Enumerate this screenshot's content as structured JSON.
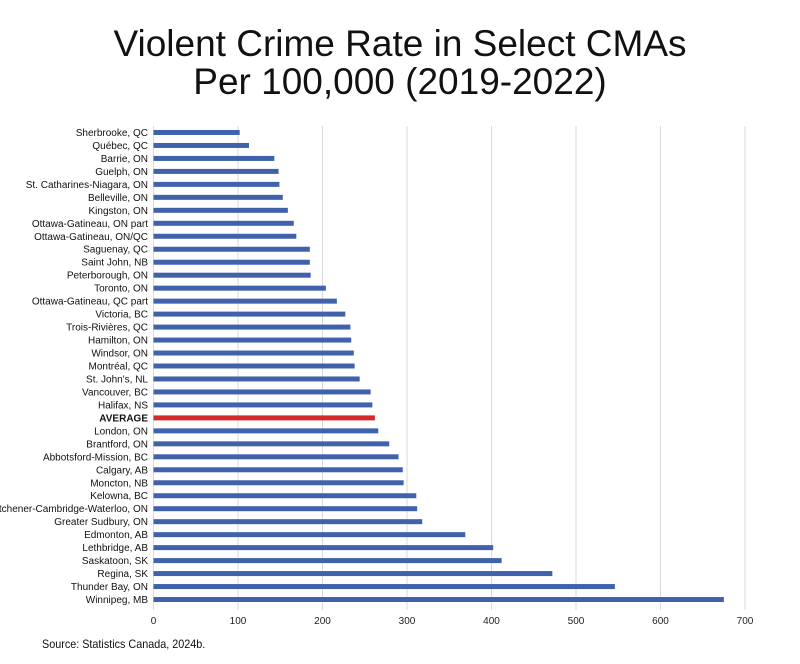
{
  "chart_data": {
    "type": "bar",
    "orientation": "horizontal",
    "title": [
      "Violent Crime Rate in Select CMAs",
      "Per 100,000 (2019-2022)"
    ],
    "xlabel": "",
    "ylabel": "",
    "xlim": [
      0,
      700
    ],
    "xticks": [
      0,
      100,
      200,
      300,
      400,
      500,
      600,
      700
    ],
    "grid": "vertical",
    "colors": {
      "bar": "#4062ad",
      "highlight": "#d42a2a",
      "grid": "#d9d9d9"
    },
    "categories": [
      "Sherbrooke, QC",
      "Québec, QC",
      "Barrie, ON",
      "Guelph, ON",
      "St. Catharines-Niagara, ON",
      "Belleville, ON",
      "Kingston, ON",
      "Ottawa-Gatineau, ON part",
      "Ottawa-Gatineau, ON/QC",
      "Saguenay, QC",
      "Saint John, NB",
      "Peterborough, ON",
      "Toronto, ON",
      "Ottawa-Gatineau, QC part",
      "Victoria, BC",
      "Trois-Rivières, QC",
      "Hamilton, ON",
      "Windsor, ON",
      "Montréal, QC",
      "St. John's, NL",
      "Vancouver, BC",
      "Halifax, NS",
      "AVERAGE",
      "London, ON",
      "Brantford, ON",
      "Abbotsford-Mission, BC",
      "Calgary, AB",
      "Moncton, NB",
      "Kelowna, BC",
      "Kitchener-Cambridge-Waterloo, ON",
      "Greater Sudbury, ON",
      "Edmonton, AB",
      "Lethbridge, AB",
      "Saskatoon, SK",
      "Regina, SK",
      "Thunder Bay, ON",
      "Winnipeg, MB"
    ],
    "values": [
      102,
      113,
      143,
      148,
      149,
      153,
      159,
      166,
      169,
      185,
      185,
      186,
      204,
      217,
      227,
      233,
      234,
      237,
      238,
      244,
      257,
      259,
      262,
      266,
      279,
      290,
      295,
      296,
      311,
      312,
      318,
      369,
      402,
      412,
      472,
      546,
      675
    ],
    "highlight_category": "AVERAGE"
  },
  "source": "Source: Statistics Canada, 2024b."
}
